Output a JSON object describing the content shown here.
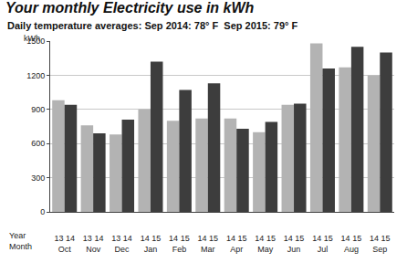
{
  "chart_data": {
    "type": "bar",
    "title": "Your monthly Electricity use in kWh",
    "subtitle": "Daily temperature averages: Sep 2014: 78° F  Sep 2015: 79° F",
    "ylabel": "kWh",
    "x_row_labels": [
      "Year",
      "Month"
    ],
    "categories": [
      "Oct",
      "Nov",
      "Dec",
      "Jan",
      "Feb",
      "Mar",
      "Apr",
      "May",
      "Jun",
      "Jul",
      "Aug",
      "Sep"
    ],
    "series": [
      {
        "color": "#b3b3b3",
        "years": [
          "13",
          "13",
          "13",
          "14",
          "14",
          "14",
          "14",
          "14",
          "14",
          "14",
          "14",
          "14"
        ],
        "values": [
          980,
          760,
          680,
          900,
          800,
          820,
          820,
          700,
          940,
          1480,
          1270,
          1200
        ]
      },
      {
        "color": "#3d3d3d",
        "years": [
          "14",
          "14",
          "14",
          "15",
          "15",
          "15",
          "15",
          "15",
          "15",
          "15",
          "15",
          "15"
        ],
        "values": [
          940,
          690,
          810,
          1320,
          1070,
          1130,
          730,
          790,
          950,
          1260,
          1450,
          1400
        ]
      }
    ],
    "ylim": [
      0,
      1500
    ],
    "yticks": [
      0,
      300,
      600,
      900,
      1200,
      1500
    ],
    "grid": true
  }
}
